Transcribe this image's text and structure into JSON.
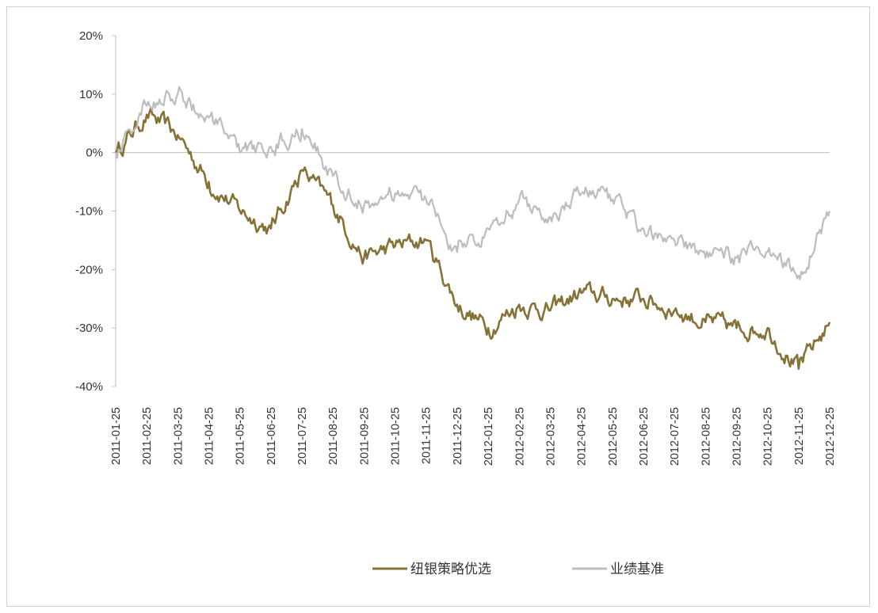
{
  "chart_data": {
    "type": "line",
    "ylim": [
      -40,
      20
    ],
    "y_ticks": [
      "20%",
      "10%",
      "0%",
      "-10%",
      "-20%",
      "-30%",
      "-40%"
    ],
    "y_tick_values": [
      20,
      10,
      0,
      -10,
      -20,
      -30,
      -40
    ],
    "categories": [
      "2011-01-25",
      "2011-02-25",
      "2011-03-25",
      "2011-04-25",
      "2011-05-25",
      "2011-06-25",
      "2011-07-25",
      "2011-08-25",
      "2011-09-25",
      "2011-10-25",
      "2011-11-25",
      "2011-12-25",
      "2012-01-25",
      "2012-02-25",
      "2012-03-25",
      "2012-04-25",
      "2012-05-25",
      "2012-06-25",
      "2012-07-25",
      "2012-08-25",
      "2012-09-25",
      "2012-10-25",
      "2012-11-25",
      "2012-12-25"
    ],
    "grid": false,
    "legend_position": "bottom",
    "series": [
      {
        "name": "纽银策略优选",
        "color": "#857236",
        "values": [
          0,
          6.5,
          3,
          -5,
          -10,
          -13,
          -3,
          -9,
          -18,
          -16,
          -15,
          -26,
          -30,
          -26,
          -27,
          -24,
          -25,
          -25,
          -27,
          -29,
          -30,
          -30,
          -37,
          -29
        ]
      },
      {
        "name": "业绩基准",
        "color": "#bdbdbd",
        "values": [
          0,
          8,
          10,
          6,
          0,
          1,
          4,
          -4,
          -9,
          -7,
          -8,
          -17,
          -13,
          -8,
          -11,
          -7,
          -8,
          -13,
          -15,
          -18,
          -18,
          -17,
          -21,
          -10
        ]
      }
    ]
  }
}
